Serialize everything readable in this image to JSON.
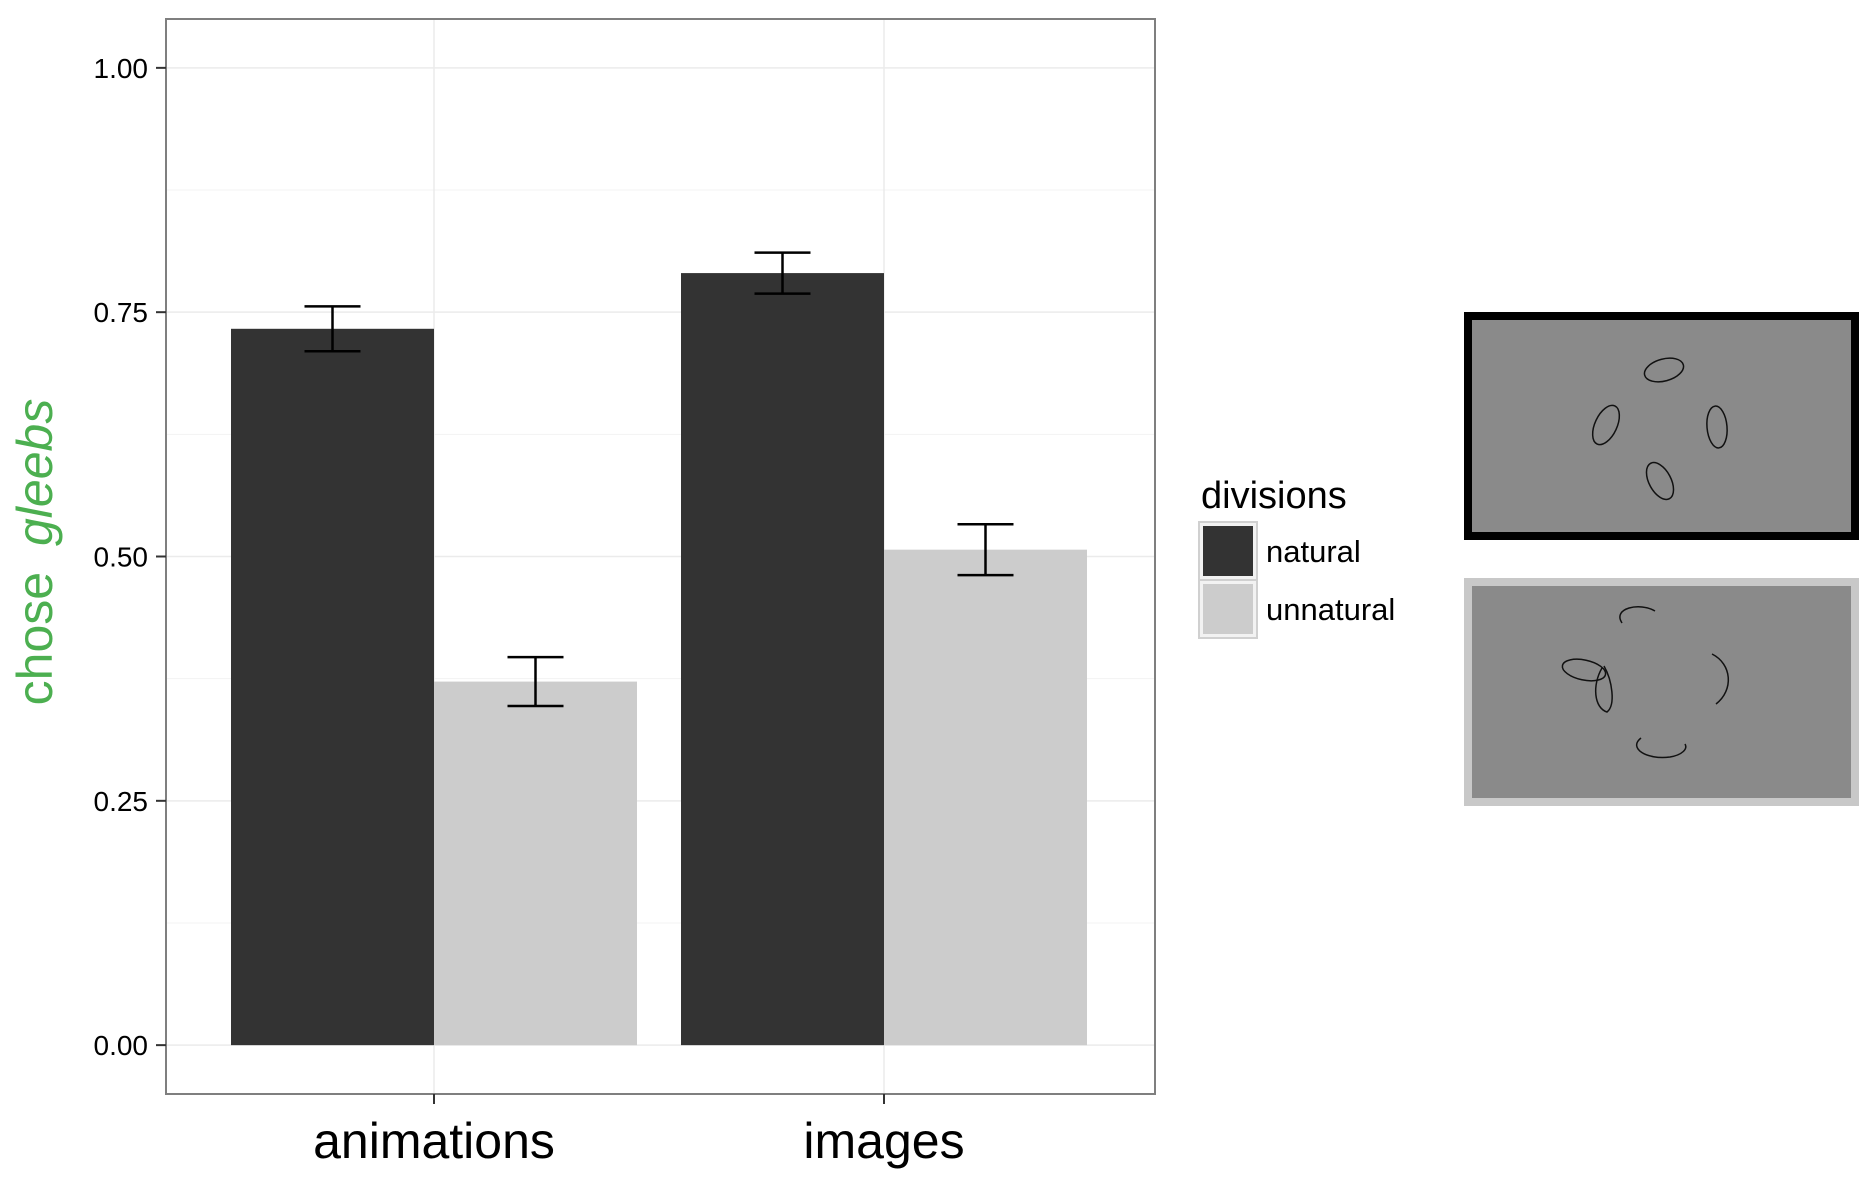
{
  "colors": {
    "natural": "#333333",
    "unnatural": "#cccccc",
    "ylabel": "#4caf50",
    "grid": "#ebebeb",
    "panel_border": "#7f7f7f",
    "thumb_bg": "#8a8a8a",
    "thumb_natural_border": "#000000",
    "thumb_unnatural_border": "#c8c8c8"
  },
  "chart_data": {
    "type": "bar",
    "categories": [
      "animations",
      "images"
    ],
    "series": [
      {
        "name": "natural",
        "values": [
          0.733,
          0.79
        ],
        "errors": [
          0.023,
          0.021
        ]
      },
      {
        "name": "unnatural",
        "values": [
          0.372,
          0.507
        ],
        "errors": [
          0.025,
          0.026
        ]
      }
    ],
    "ylabel_prefix": "chose",
    "ylabel_italic": "gleebs",
    "xlabel": "",
    "ylim": [
      -0.05,
      1.05
    ],
    "yticks": [
      "0.00",
      "0.25",
      "0.50",
      "0.75",
      "1.00"
    ],
    "grid": true,
    "legend": {
      "title": "divisions",
      "items": [
        "natural",
        "unnatural"
      ],
      "position": "right"
    }
  },
  "thumbnails": [
    {
      "series": "natural",
      "shapes": "four ellipses"
    },
    {
      "series": "unnatural",
      "shapes": "curved strokes"
    }
  ]
}
